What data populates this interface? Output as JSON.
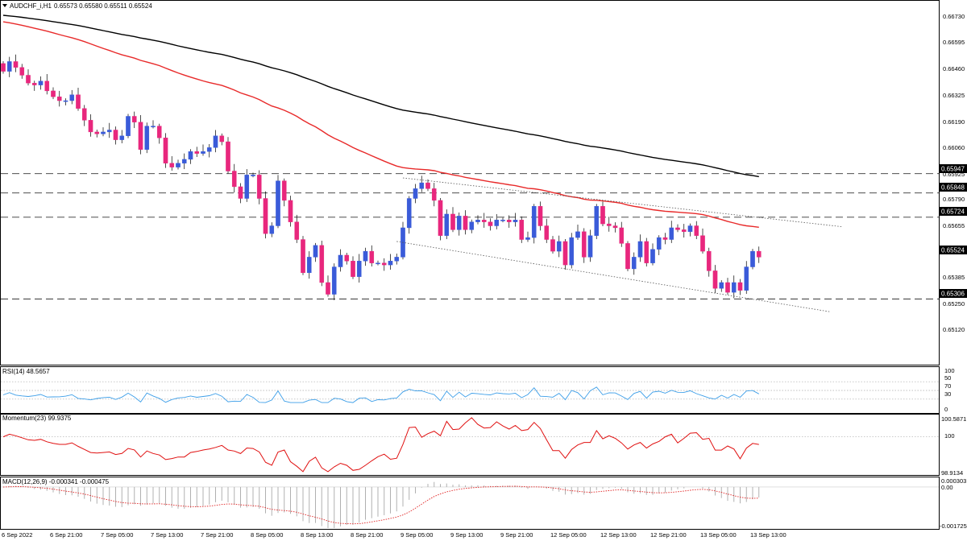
{
  "main_panel": {
    "symbol": "AUDCHF_i,H1",
    "ohlc": "0.65573 0.65580 0.65511 0.65524",
    "price_ticks": [
      "0.66730",
      "0.66595",
      "0.66460",
      "0.66325",
      "0.66190",
      "0.66060",
      "0.65925",
      "0.65790",
      "0.65655",
      "0.65524",
      "0.65385",
      "0.65250",
      "0.65120"
    ],
    "level_labels": [
      "0.65947",
      "0.65848",
      "0.65724",
      "0.65306"
    ],
    "current_label": "0.65524"
  },
  "x_axis": {
    "labels": [
      "6 Sep 2022",
      "6 Sep 21:00",
      "7 Sep 05:00",
      "7 Sep 13:00",
      "7 Sep 21:00",
      "8 Sep 05:00",
      "8 Sep 13:00",
      "8 Sep 21:00",
      "9 Sep 05:00",
      "9 Sep 13:00",
      "9 Sep 21:00",
      "12 Sep 05:00",
      "12 Sep 13:00",
      "12 Sep 21:00",
      "13 Sep 05:00",
      "13 Sep 13:00"
    ]
  },
  "rsi_panel": {
    "title": "RSI(14) 48.5657",
    "ticks": [
      "100",
      "70",
      "50",
      "30",
      "0"
    ]
  },
  "momentum_panel": {
    "title": "Momentum(23) 99.9375",
    "ticks": [
      "100.5871",
      "100",
      "98.9134"
    ]
  },
  "macd_panel": {
    "title": "MACD(12,26,9) -0.000341 -0.000475",
    "ticks": [
      "0.000303",
      "0.00",
      "-0.001725"
    ]
  },
  "chart_data": {
    "type": "candlestick",
    "bull_color": "#3a5bd9",
    "bear_color": "#e8277d",
    "ma_fast_color": "#e82a2a",
    "ma_slow_color": "#000000",
    "rsi_color": "#3c9ee8",
    "momentum_color": "#e01010",
    "y_range": [
      0.6504,
      0.6681
    ],
    "horizontal_levels": [
      0.65947,
      0.65848,
      0.65724,
      0.65306
    ],
    "closes": [
      0.6647,
      0.6652,
      0.6649,
      0.6645,
      0.6641,
      0.664,
      0.6642,
      0.6637,
      0.6634,
      0.6632,
      0.6632,
      0.6635,
      0.6628,
      0.6622,
      0.6616,
      0.6615,
      0.6616,
      0.6617,
      0.6612,
      0.6614,
      0.6624,
      0.6621,
      0.6607,
      0.6619,
      0.6619,
      0.6613,
      0.66,
      0.6598,
      0.66,
      0.6602,
      0.6606,
      0.6605,
      0.6606,
      0.6608,
      0.6614,
      0.6611,
      0.6596,
      0.6588,
      0.6582,
      0.6594,
      0.6594,
      0.6582,
      0.6564,
      0.6568,
      0.6591,
      0.6581,
      0.657,
      0.6561,
      0.6544,
      0.6552,
      0.6558,
      0.6539,
      0.6533,
      0.6547,
      0.6553,
      0.655,
      0.6542,
      0.655,
      0.6555,
      0.6549,
      0.6549,
      0.6548,
      0.655,
      0.6552,
      0.6567,
      0.6582,
      0.6587,
      0.659,
      0.6587,
      0.6581,
      0.6563,
      0.6574,
      0.6566,
      0.6573,
      0.6566,
      0.657,
      0.6571,
      0.657,
      0.6568,
      0.6571,
      0.6571,
      0.657,
      0.6571,
      0.6561,
      0.6562,
      0.6578,
      0.6568,
      0.6561,
      0.6555,
      0.656,
      0.6548,
      0.6562,
      0.6565,
      0.6552,
      0.6563,
      0.6578,
      0.6569,
      0.6568,
      0.6567,
      0.6559,
      0.6546,
      0.6552,
      0.656,
      0.6549,
      0.6556,
      0.6562,
      0.6561,
      0.6567,
      0.6566,
      0.6565,
      0.6568,
      0.6563,
      0.6555,
      0.6545,
      0.6536,
      0.6539,
      0.6534,
      0.6539,
      0.6535,
      0.6547,
      0.6555,
      0.6552
    ],
    "rsi_range": [
      0,
      100
    ],
    "rsi_levels": [
      70,
      50,
      30
    ],
    "momentum_range": [
      98.9134,
      100.5871
    ],
    "macd_range": [
      -0.001725,
      0.000303
    ]
  }
}
